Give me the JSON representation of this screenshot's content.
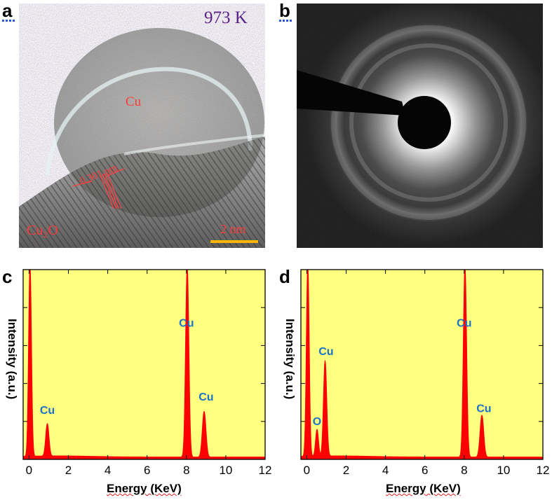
{
  "panels": {
    "a": {
      "letter": "a",
      "temperature": "973 K",
      "particle_label": "Cu",
      "substrate_label": "Cu₂O",
      "spacing_label": "0.301 nm",
      "scale_label": "2 nm",
      "colors": {
        "temperature": "#5a1f86",
        "labels": "#ff3a3a",
        "scalebar": "#ffb800"
      }
    },
    "b": {
      "letter": "b"
    }
  },
  "chart_data": [
    {
      "type": "line",
      "panel": "c",
      "xlabel": "Energy (KeV)",
      "ylabel": "Intensity (a.u.)",
      "xlim": [
        -0.3,
        12
      ],
      "xticks": [
        0,
        2,
        4,
        6,
        8,
        10,
        12
      ],
      "ylim": [
        0,
        100
      ],
      "background": "#ffff80",
      "series_color": "#ff0000",
      "label_color": "#1a73c8",
      "peaks": [
        {
          "x": 0.05,
          "height": 100,
          "width": 0.07
        },
        {
          "x": 0.93,
          "height": 17,
          "width": 0.08
        },
        {
          "x": 8.04,
          "height": 100,
          "width": 0.08
        },
        {
          "x": 8.9,
          "height": 24,
          "width": 0.09
        }
      ],
      "annotations": [
        {
          "text": "Cu",
          "x": 0.93,
          "y": 24
        },
        {
          "text": "Cu",
          "x": 8.0,
          "y": 70
        },
        {
          "text": "Cu",
          "x": 9.0,
          "y": 31
        }
      ]
    },
    {
      "type": "line",
      "panel": "d",
      "xlabel": "Energy (KeV)",
      "ylabel": "Intensity (a.u.)",
      "xlim": [
        -0.3,
        12
      ],
      "xticks": [
        0,
        2,
        4,
        6,
        8,
        10,
        12
      ],
      "ylim": [
        0,
        100
      ],
      "background": "#ffff80",
      "series_color": "#ff0000",
      "label_color": "#1a73c8",
      "peaks": [
        {
          "x": 0.05,
          "height": 100,
          "width": 0.07
        },
        {
          "x": 0.52,
          "height": 14,
          "width": 0.07
        },
        {
          "x": 0.93,
          "height": 50,
          "width": 0.08
        },
        {
          "x": 8.04,
          "height": 100,
          "width": 0.08
        },
        {
          "x": 8.9,
          "height": 22,
          "width": 0.09
        }
      ],
      "annotations": [
        {
          "text": "Cu",
          "x": 0.98,
          "y": 55
        },
        {
          "text": "O",
          "x": 0.52,
          "y": 18
        },
        {
          "text": "Cu",
          "x": 8.0,
          "y": 70
        },
        {
          "text": "Cu",
          "x": 9.0,
          "y": 25
        }
      ]
    }
  ]
}
